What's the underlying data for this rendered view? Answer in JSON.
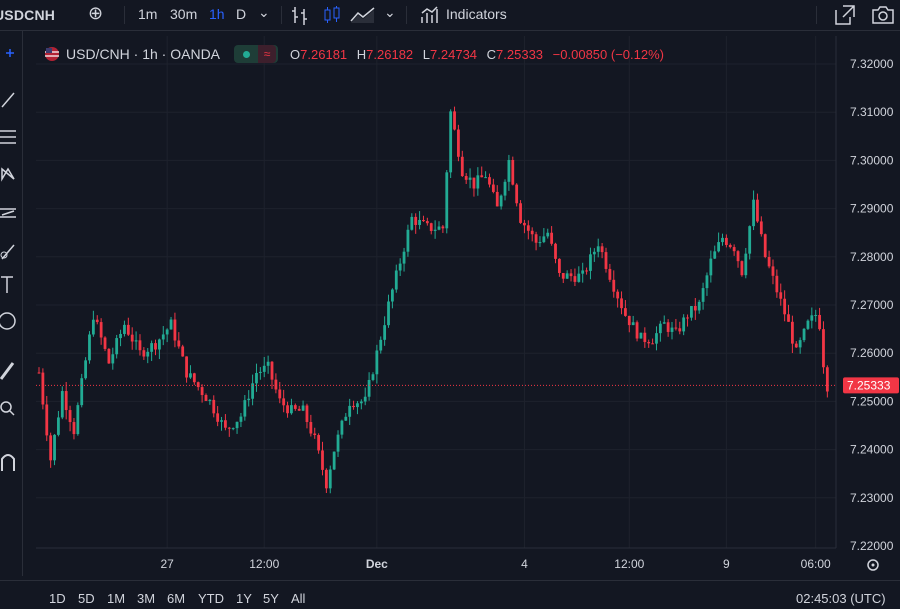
{
  "topbar": {
    "symbol": "USDCNH",
    "intervals": [
      "1m",
      "30m",
      "1h",
      "D"
    ],
    "active_interval": "1h",
    "indicators_label": "Indicators"
  },
  "legend": {
    "title": "USD/CNH · 1h · OANDA",
    "open_label": "O",
    "open": "7.26181",
    "high_label": "H",
    "high": "7.26182",
    "low_label": "L",
    "low": "7.24734",
    "close_label": "C",
    "close": "7.25333",
    "change": "−0.00850 (−0.12%)"
  },
  "price_axis": {
    "ticks": [
      "7.32000",
      "7.31000",
      "7.30000",
      "7.29000",
      "7.28000",
      "7.27000",
      "7.26000",
      "7.25000",
      "7.24000",
      "7.23000",
      "7.22000"
    ],
    "last_price_label": "7.25333"
  },
  "time_axis": {
    "ticks": [
      "27",
      "12:00",
      "Dec",
      "4",
      "12:00",
      "9",
      "06:00"
    ]
  },
  "bottombar": {
    "ranges": [
      "1D",
      "5D",
      "1M",
      "3M",
      "6M",
      "YTD",
      "1Y",
      "5Y",
      "All"
    ],
    "clock": "02:45:03 (UTC)"
  },
  "colors": {
    "background": "#131722",
    "up": "#22ab94",
    "down": "#f23645",
    "grid": "#1e222d",
    "text": "#d1d4dc"
  },
  "chart_data": {
    "type": "candlestick",
    "symbol": "USD/CNH",
    "timeframe": "1h",
    "source": "OANDA",
    "ylim": [
      7.22,
      7.32
    ],
    "last_price": 7.25333,
    "x": [
      "27",
      "12:00",
      "Dec",
      "4",
      "12:00",
      "9",
      "06:00"
    ],
    "path": [
      [
        0,
        7.256
      ],
      [
        3,
        7.238
      ],
      [
        6,
        7.252
      ],
      [
        9,
        7.244
      ],
      [
        14,
        7.268
      ],
      [
        18,
        7.258
      ],
      [
        22,
        7.266
      ],
      [
        26,
        7.26
      ],
      [
        30,
        7.262
      ],
      [
        34,
        7.266
      ],
      [
        38,
        7.256
      ],
      [
        44,
        7.25
      ],
      [
        48,
        7.244
      ],
      [
        52,
        7.247
      ],
      [
        56,
        7.256
      ],
      [
        59,
        7.257
      ],
      [
        62,
        7.25
      ],
      [
        65,
        7.248
      ],
      [
        68,
        7.248
      ],
      [
        71,
        7.242
      ],
      [
        74,
        7.233
      ],
      [
        76,
        7.24
      ],
      [
        80,
        7.25
      ],
      [
        84,
        7.25
      ],
      [
        90,
        7.27
      ],
      [
        94,
        7.282
      ],
      [
        96,
        7.288
      ],
      [
        100,
        7.286
      ],
      [
        104,
        7.286
      ],
      [
        106,
        7.31
      ],
      [
        109,
        7.298
      ],
      [
        112,
        7.295
      ],
      [
        115,
        7.297
      ],
      [
        118,
        7.29
      ],
      [
        121,
        7.3
      ],
      [
        124,
        7.288
      ],
      [
        128,
        7.283
      ],
      [
        131,
        7.285
      ],
      [
        134,
        7.276
      ],
      [
        138,
        7.276
      ],
      [
        140,
        7.276
      ],
      [
        144,
        7.283
      ],
      [
        148,
        7.274
      ],
      [
        151,
        7.268
      ],
      [
        155,
        7.263
      ],
      [
        158,
        7.263
      ],
      [
        161,
        7.266
      ],
      [
        164,
        7.264
      ],
      [
        167,
        7.268
      ],
      [
        170,
        7.27
      ],
      [
        173,
        7.279
      ],
      [
        176,
        7.284
      ],
      [
        179,
        7.282
      ],
      [
        181,
        7.277
      ],
      [
        184,
        7.291
      ],
      [
        187,
        7.28
      ],
      [
        190,
        7.273
      ],
      [
        193,
        7.266
      ],
      [
        195,
        7.26
      ],
      [
        198,
        7.266
      ],
      [
        200,
        7.268
      ],
      [
        201,
        7.266
      ],
      [
        202,
        7.258
      ],
      [
        203,
        7.2533
      ]
    ]
  }
}
